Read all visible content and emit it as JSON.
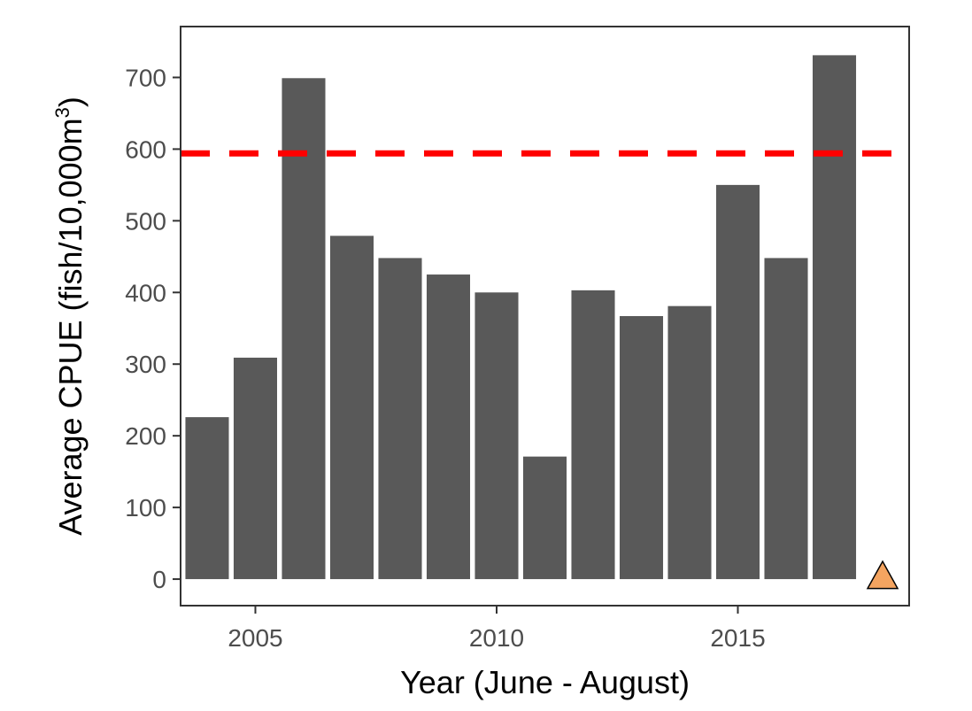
{
  "chart_data": {
    "type": "bar",
    "xlabel": "Year (June - August)",
    "ylabel": {
      "main": "Average CPUE (fish/10,000m",
      "sup": "3",
      "close": ")"
    },
    "categories": [
      2004,
      2005,
      2006,
      2007,
      2008,
      2009,
      2010,
      2011,
      2012,
      2013,
      2014,
      2015,
      2016,
      2017
    ],
    "values": [
      226,
      309,
      699,
      479,
      448,
      425,
      400,
      171,
      403,
      367,
      381,
      550,
      448,
      731
    ],
    "x_ticks": [
      "2005",
      "2010",
      "2015"
    ],
    "y_ticks": [
      "0",
      "100",
      "200",
      "300",
      "400",
      "500",
      "600",
      "700"
    ],
    "xlim": [
      2003.45,
      2018.55
    ],
    "ylim": [
      -37,
      771
    ],
    "reference_line": {
      "value": 594,
      "style": "dashed",
      "color": "#ff0000"
    },
    "marker": {
      "x": 2018,
      "y": 0,
      "shape": "triangle",
      "color": "#f4a460"
    },
    "bar_color": "#595959",
    "grid": false,
    "legend": "none"
  }
}
